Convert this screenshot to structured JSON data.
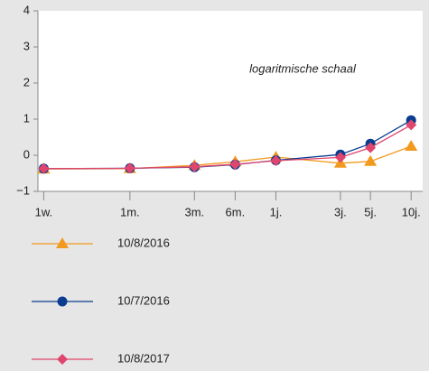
{
  "chart_data": {
    "type": "line",
    "annotation": "logaritmische schaal",
    "x": [
      0.0192,
      0.0833,
      0.25,
      0.5,
      1,
      3,
      5,
      10
    ],
    "xscale": "log",
    "xlim": [
      0.0185,
      10.6
    ],
    "xticks": [
      {
        "value": 0.0192,
        "label": "1w."
      },
      {
        "value": 0.0833,
        "label": "1m."
      },
      {
        "value": 0.25,
        "label": "3m."
      },
      {
        "value": 0.5,
        "label": "6m."
      },
      {
        "value": 1,
        "label": "1j."
      },
      {
        "value": 3,
        "label": "3j."
      },
      {
        "value": 5,
        "label": "5j."
      },
      {
        "value": 10,
        "label": "10j."
      }
    ],
    "ylim": [
      -1,
      4
    ],
    "yticks": [
      {
        "value": -1,
        "label": "−1"
      },
      0,
      1,
      2,
      3,
      4
    ],
    "series": [
      {
        "name": "10/8/2016",
        "color": "#f29a1f",
        "marker": "triangle",
        "values": [
          -0.38,
          -0.37,
          -0.28,
          -0.18,
          -0.05,
          -0.22,
          -0.17,
          0.25
        ]
      },
      {
        "name": "10/7/2016",
        "color": "#0a3d8f",
        "marker": "circle",
        "values": [
          -0.37,
          -0.36,
          -0.33,
          -0.26,
          -0.14,
          0.02,
          0.32,
          0.97
        ]
      },
      {
        "name": "10/8/2017",
        "color": "#e0456e",
        "marker": "diamond",
        "values": [
          -0.37,
          -0.36,
          -0.32,
          -0.25,
          -0.15,
          -0.06,
          0.21,
          0.84
        ]
      }
    ]
  }
}
